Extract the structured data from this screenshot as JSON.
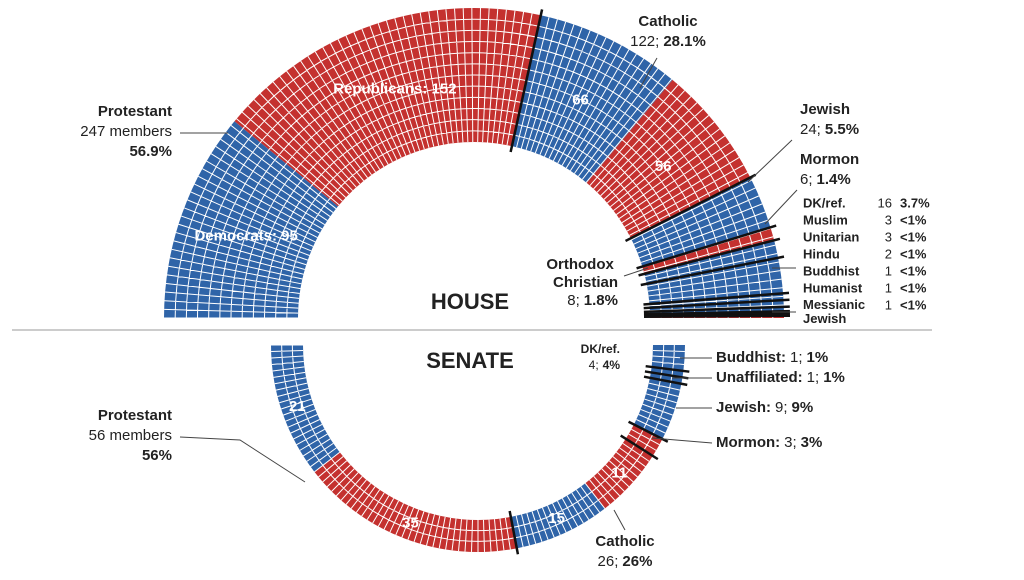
{
  "chart_data": [
    {
      "type": "parliament",
      "title": "HOUSE",
      "orientation": "up",
      "groups": [
        {
          "name": "Protestant",
          "count": 247,
          "count_label": "247 members",
          "share": "56.9%",
          "split": [
            {
              "value": 95,
              "color": "#2f64a8",
              "label": "Democrats: 95"
            },
            {
              "value": 152,
              "color": "#c4312f",
              "label": "Republicans: 152"
            }
          ]
        },
        {
          "name": "Catholic",
          "count": 122,
          "count_label": "122;",
          "share": "28.1%",
          "split": [
            {
              "value": 66,
              "color": "#2f64a8"
            },
            {
              "value": 56,
              "color": "#c4312f"
            }
          ]
        },
        {
          "name": "Jewish",
          "count": 24,
          "count_label": "24;",
          "share": "5.5%",
          "color": "#2f64a8"
        },
        {
          "name": "Mormon",
          "count": 6,
          "count_label": "6;",
          "share": "1.4%",
          "color": "#c4312f"
        },
        {
          "name": "Orthodox Christian",
          "count": 8,
          "count_label": "8;",
          "share": "1.8%",
          "color": "#2f64a8"
        },
        {
          "name": "DK/ref.",
          "count": 16,
          "share": "3.7%",
          "color": "#2f64a8"
        },
        {
          "name": "Muslim",
          "count": 3,
          "share": "<1%",
          "color": "#2f64a8"
        },
        {
          "name": "Unitarian",
          "count": 3,
          "share": "<1%",
          "color": "#2f64a8"
        },
        {
          "name": "Hindu",
          "count": 2,
          "share": "<1%",
          "color": "#2f64a8"
        },
        {
          "name": "Buddhist",
          "count": 1,
          "share": "<1%",
          "color": "#2f64a8"
        },
        {
          "name": "Humanist",
          "count": 1,
          "share": "<1%",
          "color": "#2f64a8"
        },
        {
          "name": "Messianic Jewish",
          "count": 1,
          "share": "<1%",
          "color": "#c4312f"
        }
      ]
    },
    {
      "type": "parliament",
      "title": "SENATE",
      "orientation": "down",
      "groups": [
        {
          "name": "Protestant",
          "count": 56,
          "count_label": "56 members",
          "share": "56%",
          "split": [
            {
              "value": 21,
              "color": "#2f64a8"
            },
            {
              "value": 35,
              "color": "#c4312f"
            }
          ]
        },
        {
          "name": "Catholic",
          "count": 26,
          "count_label": "26;",
          "share": "26%",
          "split": [
            {
              "value": 15,
              "color": "#2f64a8"
            },
            {
              "value": 11,
              "color": "#c4312f"
            }
          ]
        },
        {
          "name": "Mormon:",
          "count": 3,
          "count_label": "3;",
          "share": "3%",
          "color": "#c4312f"
        },
        {
          "name": "Jewish:",
          "count": 9,
          "count_label": "9;",
          "share": "9%",
          "color": "#2f64a8"
        },
        {
          "name": "Unaffiliated:",
          "count": 1,
          "count_label": "1;",
          "share": "1%",
          "color": "#2f64a8"
        },
        {
          "name": "Buddhist:",
          "count": 1,
          "count_label": "1;",
          "share": "1%",
          "color": "#2f64a8"
        },
        {
          "name": "DK/ref.",
          "count": 4,
          "count_label": "4;",
          "share": "4%",
          "color": "#2f64a8"
        }
      ]
    }
  ]
}
